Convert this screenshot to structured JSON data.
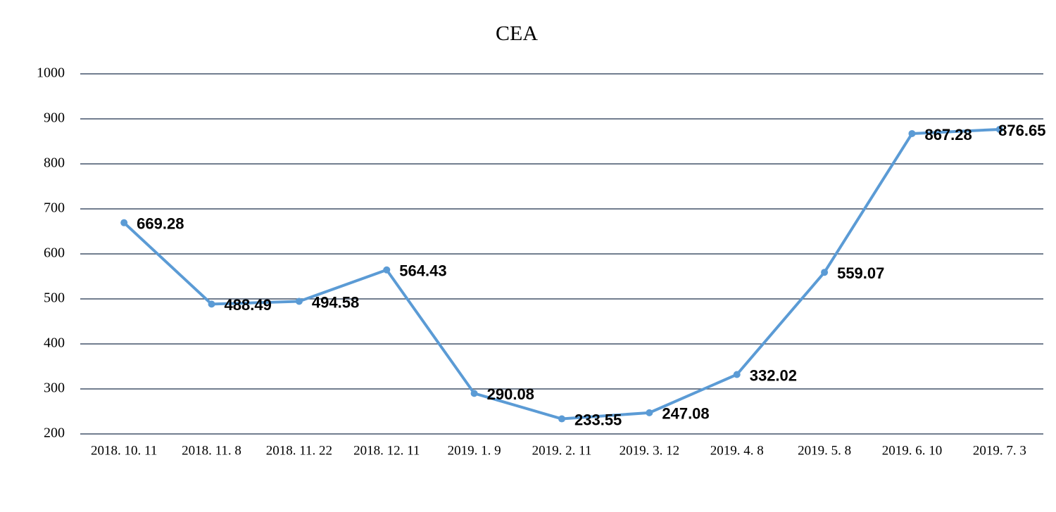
{
  "chart_data": {
    "type": "line",
    "title": "CEA",
    "categories": [
      "2018. 10. 11",
      "2018. 11. 8",
      "2018. 11. 22",
      "2018. 12. 11",
      "2019. 1. 9",
      "2019. 2. 11",
      "2019. 3. 12",
      "2019. 4. 8",
      "2019. 5. 8",
      "2019. 6. 10",
      "2019. 7. 3"
    ],
    "values": [
      669.28,
      488.49,
      494.58,
      564.43,
      290.08,
      233.55,
      247.08,
      332.02,
      559.07,
      867.28,
      876.65
    ],
    "color": "#5b9bd5",
    "ylim": [
      200,
      1000
    ],
    "yticks": [
      200,
      300,
      400,
      500,
      600,
      700,
      800,
      900,
      1000
    ],
    "grid": true
  }
}
